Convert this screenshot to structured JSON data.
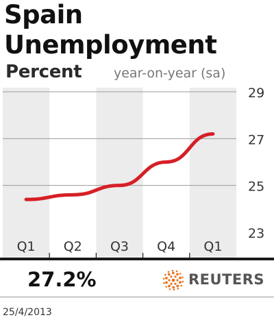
{
  "header": {
    "title_line1": "Spain",
    "title_line2": "Unemployment",
    "subtitle": "Percent",
    "note": "year-on-year (sa)"
  },
  "headline_value": "27.2%",
  "brand": {
    "name": "REUTERS",
    "color": "#e8731d"
  },
  "date": "25/4/2013",
  "colors": {
    "line": "#d61f26",
    "band": "#ececec",
    "axis": "#1a1a1a"
  },
  "chart_data": {
    "type": "line",
    "title": "Spain Unemployment",
    "ylabel": "Percent",
    "categories": [
      "Q1",
      "Q2",
      "Q3",
      "Q4",
      "Q1"
    ],
    "series": [
      {
        "values": [
          24.4,
          24.6,
          25.0,
          26.0,
          27.2
        ]
      }
    ],
    "ylim": [
      23,
      29
    ],
    "yticks": [
      23,
      25,
      27,
      29
    ],
    "grid": true,
    "legend": "none"
  }
}
